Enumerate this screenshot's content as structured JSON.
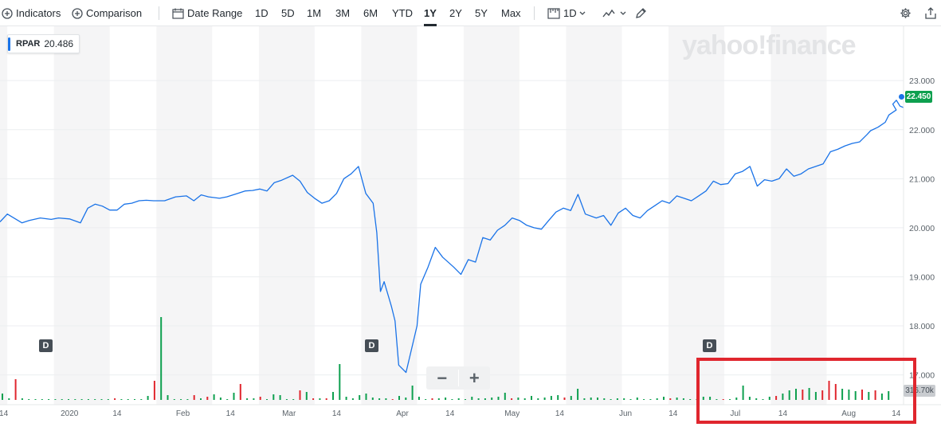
{
  "toolbar": {
    "indicators_label": "Indicators",
    "comparison_label": "Comparison",
    "date_range_label": "Date Range",
    "ranges": [
      "1D",
      "5D",
      "1M",
      "3M",
      "6M",
      "YTD",
      "1Y",
      "2Y",
      "5Y",
      "Max"
    ],
    "active_range": "1Y",
    "interval_label": "1D",
    "icons": [
      "plus-circle-icon",
      "calendar-icon",
      "candles-icon",
      "line-chart-icon",
      "draw-pencil-icon",
      "gear-icon",
      "share-icon"
    ]
  },
  "legend": {
    "symbol": "RPAR",
    "value": "20.486"
  },
  "watermark": "yahoo!finance",
  "current_price": "22.450",
  "volume_label": "316.70k",
  "dividend_marker": "D",
  "zoom": {
    "minus": "−",
    "plus": "+"
  },
  "colors": {
    "line": "#1a73e8",
    "up": "#0ea04f",
    "down": "#e0262e",
    "band": "#f5f5f6",
    "grid": "#eceef0"
  },
  "chart_data": {
    "type": "line",
    "symbol": "RPAR",
    "ylim": [
      16.75,
      23.75
    ],
    "yticks": [
      17,
      18,
      19,
      20,
      21,
      22,
      23
    ],
    "ytick_labels": [
      "17.000",
      "18.000",
      "19.000",
      "20.000",
      "21.000",
      "22.000",
      "23.000"
    ],
    "xticks": [
      "14",
      "2020",
      "14",
      "Feb",
      "14",
      "Mar",
      "14",
      "Apr",
      "14",
      "May",
      "14",
      "Jun",
      "14",
      "Jul",
      "14",
      "Aug",
      "14"
    ],
    "start_date": "2019-12-13",
    "end_date": "2020-08-16",
    "series": [
      {
        "name": "RPAR",
        "points": [
          [
            "2019-12-13",
            20.12
          ],
          [
            "2019-12-15",
            20.28
          ],
          [
            "2019-12-19",
            20.1
          ],
          [
            "2019-12-21",
            20.15
          ],
          [
            "2019-12-24",
            20.2
          ],
          [
            "2019-12-27",
            20.17
          ],
          [
            "2019-12-29",
            20.2
          ],
          [
            "2020-01-01",
            20.18
          ],
          [
            "2020-01-04",
            20.1
          ],
          [
            "2020-01-06",
            20.4
          ],
          [
            "2020-01-08",
            20.48
          ],
          [
            "2020-01-10",
            20.44
          ],
          [
            "2020-01-12",
            20.36
          ],
          [
            "2020-01-14",
            20.36
          ],
          [
            "2020-01-16",
            20.48
          ],
          [
            "2020-01-18",
            20.5
          ],
          [
            "2020-01-20",
            20.55
          ],
          [
            "2020-01-22",
            20.56
          ],
          [
            "2020-01-24",
            20.55
          ],
          [
            "2020-01-27",
            20.55
          ],
          [
            "2020-01-30",
            20.63
          ],
          [
            "2020-02-02",
            20.65
          ],
          [
            "2020-02-04",
            20.55
          ],
          [
            "2020-02-06",
            20.67
          ],
          [
            "2020-02-08",
            20.63
          ],
          [
            "2020-02-11",
            20.6
          ],
          [
            "2020-02-13",
            20.63
          ],
          [
            "2020-02-16",
            20.7
          ],
          [
            "2020-02-18",
            20.75
          ],
          [
            "2020-02-20",
            20.76
          ],
          [
            "2020-02-22",
            20.79
          ],
          [
            "2020-02-24",
            20.75
          ],
          [
            "2020-02-26",
            20.92
          ],
          [
            "2020-02-28",
            20.97
          ],
          [
            "2020-03-02",
            21.07
          ],
          [
            "2020-03-04",
            20.95
          ],
          [
            "2020-03-06",
            20.72
          ],
          [
            "2020-03-08",
            20.6
          ],
          [
            "2020-03-10",
            20.5
          ],
          [
            "2020-03-12",
            20.55
          ],
          [
            "2020-03-14",
            20.7
          ],
          [
            "2020-03-16",
            21.0
          ],
          [
            "2020-03-18",
            21.1
          ],
          [
            "2020-03-20",
            21.25
          ],
          [
            "2020-03-22",
            20.7
          ],
          [
            "2020-03-24",
            20.5
          ],
          [
            "2020-03-25",
            19.9
          ],
          [
            "2020-03-26",
            18.7
          ],
          [
            "2020-03-27",
            18.9
          ],
          [
            "2020-03-29",
            18.4
          ],
          [
            "2020-03-30",
            18.1
          ],
          [
            "2020-03-31",
            17.2
          ],
          [
            "2020-04-02",
            17.05
          ],
          [
            "2020-04-05",
            18.0
          ],
          [
            "2020-04-06",
            18.85
          ],
          [
            "2020-04-08",
            19.2
          ],
          [
            "2020-04-10",
            19.6
          ],
          [
            "2020-04-12",
            19.4
          ],
          [
            "2020-04-15",
            19.2
          ],
          [
            "2020-04-17",
            19.05
          ],
          [
            "2020-04-19",
            19.35
          ],
          [
            "2020-04-21",
            19.3
          ],
          [
            "2020-04-23",
            19.8
          ],
          [
            "2020-04-25",
            19.75
          ],
          [
            "2020-04-27",
            19.95
          ],
          [
            "2020-04-29",
            20.05
          ],
          [
            "2020-05-01",
            20.2
          ],
          [
            "2020-05-03",
            20.15
          ],
          [
            "2020-05-05",
            20.05
          ],
          [
            "2020-05-07",
            20.0
          ],
          [
            "2020-05-09",
            19.97
          ],
          [
            "2020-05-11",
            20.15
          ],
          [
            "2020-05-13",
            20.32
          ],
          [
            "2020-05-15",
            20.4
          ],
          [
            "2020-05-17",
            20.35
          ],
          [
            "2020-05-19",
            20.68
          ],
          [
            "2020-05-21",
            20.28
          ],
          [
            "2020-05-24",
            20.2
          ],
          [
            "2020-05-26",
            20.25
          ],
          [
            "2020-05-28",
            20.05
          ],
          [
            "2020-05-30",
            20.3
          ],
          [
            "2020-06-01",
            20.4
          ],
          [
            "2020-06-03",
            20.25
          ],
          [
            "2020-06-05",
            20.2
          ],
          [
            "2020-06-07",
            20.35
          ],
          [
            "2020-06-09",
            20.45
          ],
          [
            "2020-06-11",
            20.55
          ],
          [
            "2020-06-13",
            20.5
          ],
          [
            "2020-06-15",
            20.65
          ],
          [
            "2020-06-17",
            20.6
          ],
          [
            "2020-06-19",
            20.55
          ],
          [
            "2020-06-21",
            20.65
          ],
          [
            "2020-06-23",
            20.75
          ],
          [
            "2020-06-25",
            20.95
          ],
          [
            "2020-06-27",
            20.88
          ],
          [
            "2020-06-29",
            20.9
          ],
          [
            "2020-07-01",
            21.1
          ],
          [
            "2020-07-03",
            21.15
          ],
          [
            "2020-07-05",
            21.25
          ],
          [
            "2020-07-07",
            20.85
          ],
          [
            "2020-07-09",
            20.98
          ],
          [
            "2020-07-11",
            20.95
          ],
          [
            "2020-07-13",
            21.0
          ],
          [
            "2020-07-15",
            21.2
          ],
          [
            "2020-07-17",
            21.05
          ],
          [
            "2020-07-19",
            21.1
          ],
          [
            "2020-07-21",
            21.2
          ],
          [
            "2020-07-23",
            21.25
          ],
          [
            "2020-07-25",
            21.3
          ],
          [
            "2020-07-27",
            21.55
          ],
          [
            "2020-07-29",
            21.6
          ],
          [
            "2020-07-31",
            21.67
          ],
          [
            "2020-08-02",
            21.72
          ],
          [
            "2020-08-04",
            21.75
          ],
          [
            "2020-08-06",
            21.9
          ],
          [
            "2020-08-07",
            21.98
          ],
          [
            "2020-08-09",
            22.05
          ],
          [
            "2020-08-11",
            22.15
          ],
          [
            "2020-08-12",
            22.3
          ],
          [
            "2020-08-13",
            22.35
          ],
          [
            "2020-08-14",
            22.4
          ],
          [
            "2020-08-15",
            22.52
          ],
          [
            "2020-08-15",
            22.6
          ],
          [
            "2020-08-15",
            22.48
          ],
          [
            "2020-08-16",
            22.45
          ]
        ]
      }
    ]
  }
}
